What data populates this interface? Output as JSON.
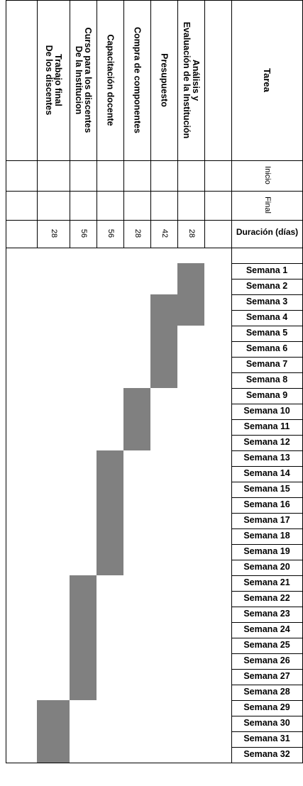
{
  "header": {
    "tarea": "Tarea",
    "inicio": "Inicio",
    "final": "Final",
    "duracion": "Duración (días)"
  },
  "tasks": [
    {
      "name": "Análisis y\nEvaluación de la Institución",
      "duration": "28",
      "start_week": 1,
      "end_week": 4
    },
    {
      "name": "Presupuesto",
      "duration": "42",
      "start_week": 3,
      "end_week": 8
    },
    {
      "name": "Compra de componentes",
      "duration": "28",
      "start_week": 9,
      "end_week": 12
    },
    {
      "name": "Capacitación docente",
      "duration": "56",
      "start_week": 13,
      "end_week": 20
    },
    {
      "name": "Curso para los discentes\nDe la Institucion",
      "duration": "56",
      "start_week": 21,
      "end_week": 28
    },
    {
      "name": "Trabajo final\nDe los discentes",
      "duration": "28",
      "start_week": 29,
      "end_week": 32
    }
  ],
  "weeks": [
    "Semana 1",
    "Semana 2",
    "Semana 3",
    "Semana 4",
    "Semana 5",
    "Semana 6",
    "Semana 7",
    "Semana 8",
    "Semana 9",
    "Semana 10",
    "Semana 11",
    "Semana 12",
    "Semana 13",
    "Semana 14",
    "Semana 15",
    "Semana 16",
    "Semana 17",
    "Semana 18",
    "Semana 19",
    "Semana 20",
    "Semana 21",
    "Semana 22",
    "Semana 23",
    "Semana 24",
    "Semana 25",
    "Semana 26",
    "Semana 27",
    "Semana 28",
    "Semana 29",
    "Semana 30",
    "Semana 31",
    "Semana 32"
  ],
  "bar_color": "#808080"
}
